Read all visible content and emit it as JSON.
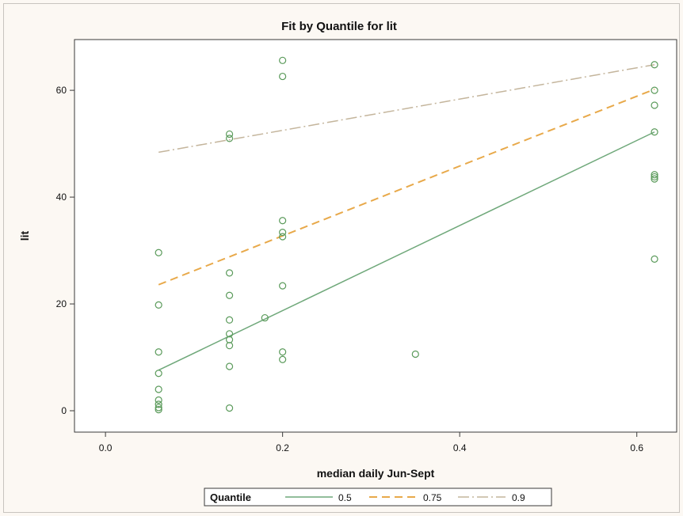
{
  "chart_data": {
    "type": "scatter",
    "title": "Fit by Quantile for lit",
    "xlabel": "median daily Jun-Sept",
    "ylabel": "lit",
    "xlim": [
      -0.035,
      0.645
    ],
    "ylim": [
      -4,
      69.5
    ],
    "x_ticks": [
      0.0,
      0.2,
      0.4,
      0.6
    ],
    "x_tick_labels": [
      "0.0",
      "0.2",
      "0.4",
      "0.6"
    ],
    "y_ticks": [
      0,
      20,
      40,
      60
    ],
    "y_tick_labels": [
      "0",
      "20",
      "40",
      "60"
    ],
    "grid": false,
    "legend_position": "bottom",
    "points": [
      {
        "x": 0.06,
        "y": 29.6
      },
      {
        "x": 0.06,
        "y": 19.8
      },
      {
        "x": 0.06,
        "y": 11.0
      },
      {
        "x": 0.06,
        "y": 7.0
      },
      {
        "x": 0.06,
        "y": 4.0
      },
      {
        "x": 0.06,
        "y": 2.0
      },
      {
        "x": 0.06,
        "y": 1.2
      },
      {
        "x": 0.06,
        "y": 0.6
      },
      {
        "x": 0.06,
        "y": 0.2
      },
      {
        "x": 0.14,
        "y": 51.8
      },
      {
        "x": 0.14,
        "y": 51.0
      },
      {
        "x": 0.14,
        "y": 25.8
      },
      {
        "x": 0.14,
        "y": 21.6
      },
      {
        "x": 0.14,
        "y": 17.0
      },
      {
        "x": 0.14,
        "y": 14.4
      },
      {
        "x": 0.14,
        "y": 13.3
      },
      {
        "x": 0.14,
        "y": 12.2
      },
      {
        "x": 0.14,
        "y": 8.3
      },
      {
        "x": 0.14,
        "y": 0.5
      },
      {
        "x": 0.18,
        "y": 17.4
      },
      {
        "x": 0.2,
        "y": 65.6
      },
      {
        "x": 0.2,
        "y": 62.6
      },
      {
        "x": 0.2,
        "y": 35.6
      },
      {
        "x": 0.2,
        "y": 33.4
      },
      {
        "x": 0.2,
        "y": 32.6
      },
      {
        "x": 0.2,
        "y": 23.4
      },
      {
        "x": 0.2,
        "y": 11.0
      },
      {
        "x": 0.2,
        "y": 9.6
      },
      {
        "x": 0.35,
        "y": 10.6
      },
      {
        "x": 0.62,
        "y": 64.8
      },
      {
        "x": 0.62,
        "y": 60.0
      },
      {
        "x": 0.62,
        "y": 57.2
      },
      {
        "x": 0.62,
        "y": 52.2
      },
      {
        "x": 0.62,
        "y": 44.2
      },
      {
        "x": 0.62,
        "y": 43.8
      },
      {
        "x": 0.62,
        "y": 43.4
      },
      {
        "x": 0.62,
        "y": 28.4
      }
    ],
    "point_color": "#5a9a5a",
    "series": [
      {
        "name": "0.5",
        "x": [
          0.06,
          0.62
        ],
        "y": [
          7.6,
          52.2
        ],
        "color": "#6fa87a",
        "dash": "solid"
      },
      {
        "name": "0.75",
        "x": [
          0.06,
          0.62
        ],
        "y": [
          23.6,
          60.2
        ],
        "color": "#e8a94a",
        "dash": "dash"
      },
      {
        "name": "0.9",
        "x": [
          0.06,
          0.62
        ],
        "y": [
          48.4,
          64.8
        ],
        "color": "#c4b59c",
        "dash": "dashdot"
      }
    ],
    "legend_title": "Quantile"
  }
}
